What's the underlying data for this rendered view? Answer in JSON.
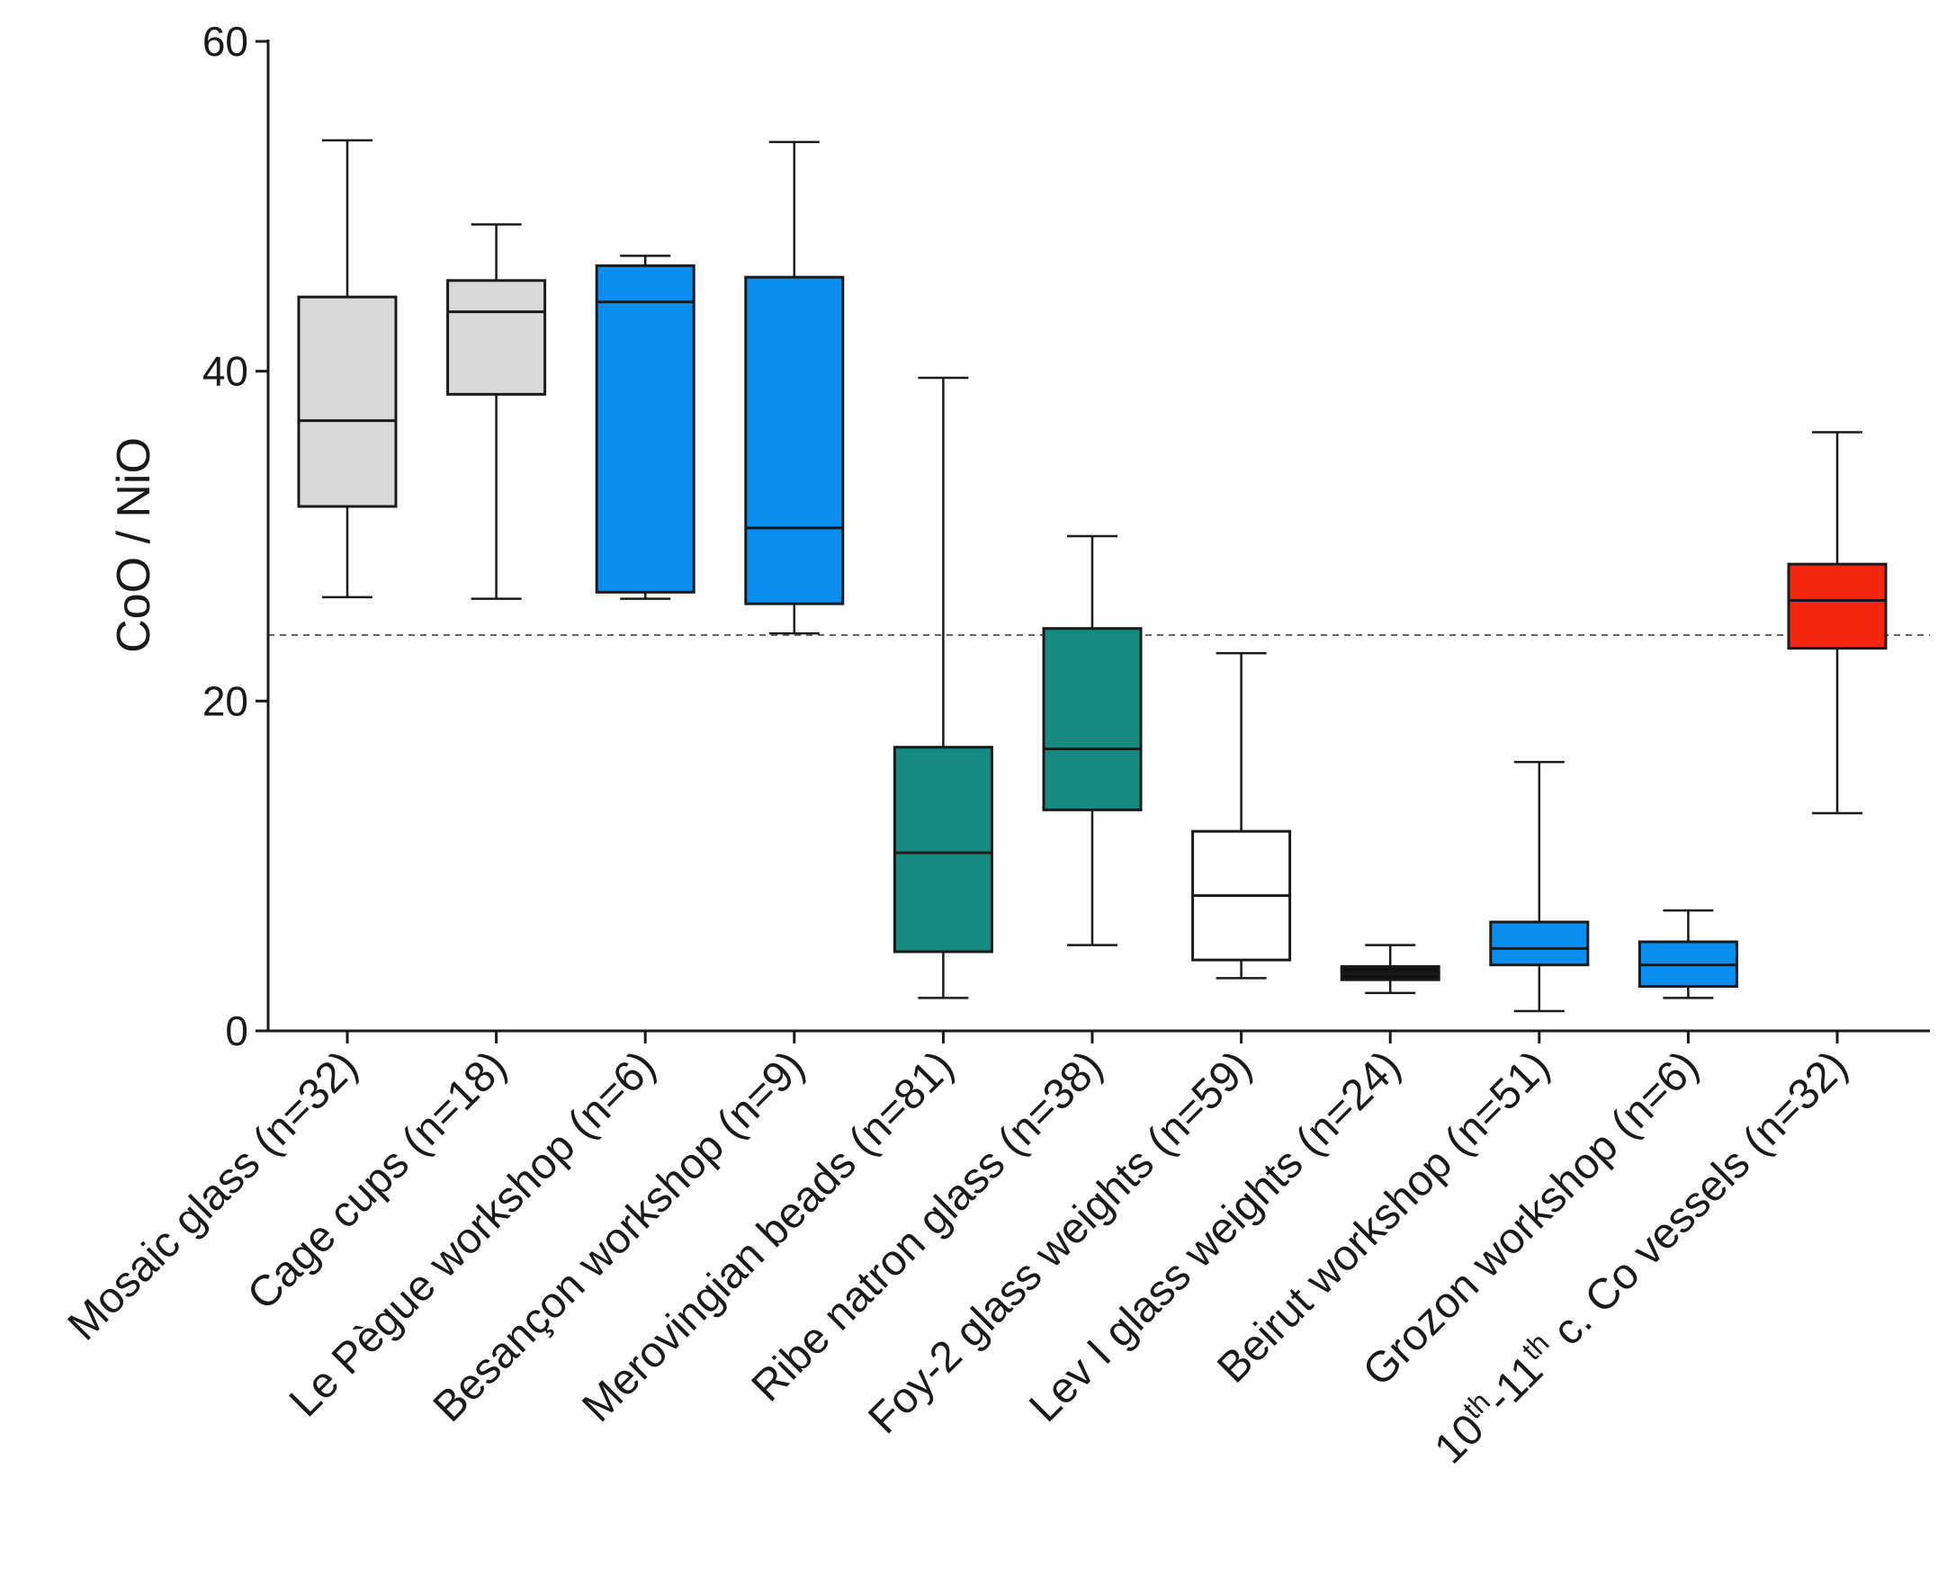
{
  "chart_data": {
    "type": "boxplot",
    "title": "",
    "xlabel": "",
    "ylabel": "CoO / NiO",
    "ylim": [
      0,
      60
    ],
    "yticks": [
      0,
      20,
      40,
      60
    ],
    "grid": false,
    "reference_line": {
      "y": 24,
      "style": "dashed",
      "color": "#666666"
    },
    "categories": [
      {
        "label": "Mosaic glass (n=32)",
        "min": 26.3,
        "q1": 31.8,
        "median": 37.0,
        "q3": 44.5,
        "max": 54.0,
        "color": "#d9d9d9"
      },
      {
        "label": "Cage cups (n=18)",
        "min": 26.2,
        "q1": 38.6,
        "median": 43.6,
        "q3": 45.5,
        "max": 48.9,
        "color": "#d9d9d9"
      },
      {
        "label": "Le Pègue workshop (n=6)",
        "min": 26.2,
        "q1": 26.6,
        "median": 44.2,
        "q3": 46.4,
        "max": 47.0,
        "color": "#0a8ef0"
      },
      {
        "label": "Besançon workshop (n=9)",
        "min": 24.1,
        "q1": 25.9,
        "median": 30.5,
        "q3": 45.7,
        "max": 53.9,
        "color": "#0a8ef0"
      },
      {
        "label": "Merovingian beads (n=81)",
        "min": 2.0,
        "q1": 4.8,
        "median": 10.8,
        "q3": 17.2,
        "max": 39.6,
        "color": "#148a80"
      },
      {
        "label": "Ribe natron glass (n=38)",
        "min": 5.2,
        "q1": 13.4,
        "median": 17.1,
        "q3": 24.4,
        "max": 30.0,
        "color": "#148a80"
      },
      {
        "label": "Foy-2 glass weights (n=59)",
        "min": 3.2,
        "q1": 4.3,
        "median": 8.2,
        "q3": 12.1,
        "max": 22.9,
        "color": "#ffffff"
      },
      {
        "label": "Lev I glass weights (n=24)",
        "min": 2.3,
        "q1": 3.1,
        "median": 3.5,
        "q3": 3.9,
        "max": 5.2,
        "color": "#111111"
      },
      {
        "label": "Beirut workshop (n=51)",
        "min": 1.2,
        "q1": 4.0,
        "median": 5.0,
        "q3": 6.6,
        "max": 16.3,
        "color": "#0a8ef0"
      },
      {
        "label": "Grozon workshop (n=6)",
        "min": 2.0,
        "q1": 2.7,
        "median": 4.0,
        "q3": 5.4,
        "max": 7.3,
        "color": "#0a8ef0"
      },
      {
        "label": "10th-11th c. Co vessels (n=32)",
        "min": 13.2,
        "q1": 23.2,
        "median": 26.1,
        "q3": 28.3,
        "max": 36.3,
        "color": "#f5260f"
      }
    ]
  }
}
